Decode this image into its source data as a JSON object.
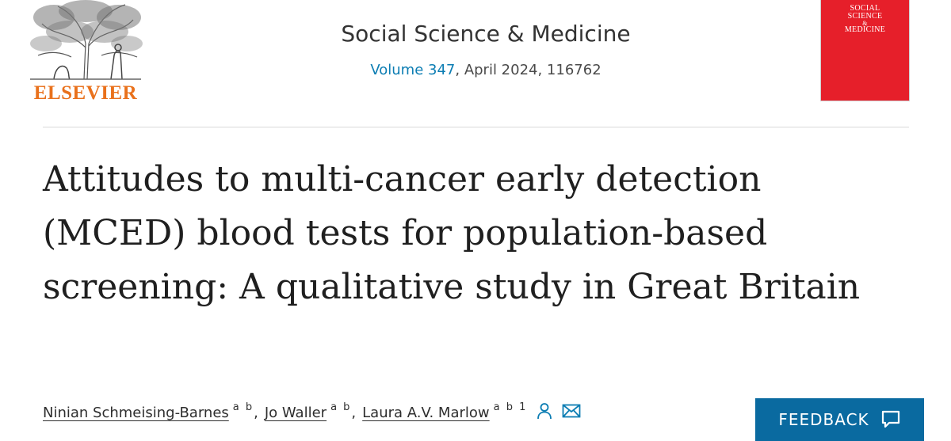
{
  "publisher": {
    "name": "ELSEVIER"
  },
  "journal": {
    "title": "Social Science & Medicine",
    "volume_link": "Volume 347",
    "issue_rest": ", April 2024, 116762",
    "cover_lines": [
      "SOCIAL",
      "SCIENCE",
      "&",
      "MEDICINE"
    ]
  },
  "article": {
    "title": "Attitudes to multi-cancer early detection (MCED) blood tests for population-based screening: A qualitative study in Great Britain"
  },
  "authors": [
    {
      "name": "Ninian Schmeising-Barnes",
      "sup": "a b"
    },
    {
      "name": "Jo Waller",
      "sup": "a b"
    },
    {
      "name": "Laura A.V. Marlow",
      "sup": "a b 1"
    }
  ],
  "separator": ",",
  "icons": {
    "corresponding": "person-icon",
    "email": "envelope-icon",
    "feedback": "chat-bubble-icon"
  },
  "feedback": {
    "label": "FEEDBACK"
  },
  "colors": {
    "link": "#0c7db3",
    "publisher_orange": "#e9711c",
    "cover_red": "#e61f2a",
    "feedback_bg": "#0a6aa0"
  }
}
